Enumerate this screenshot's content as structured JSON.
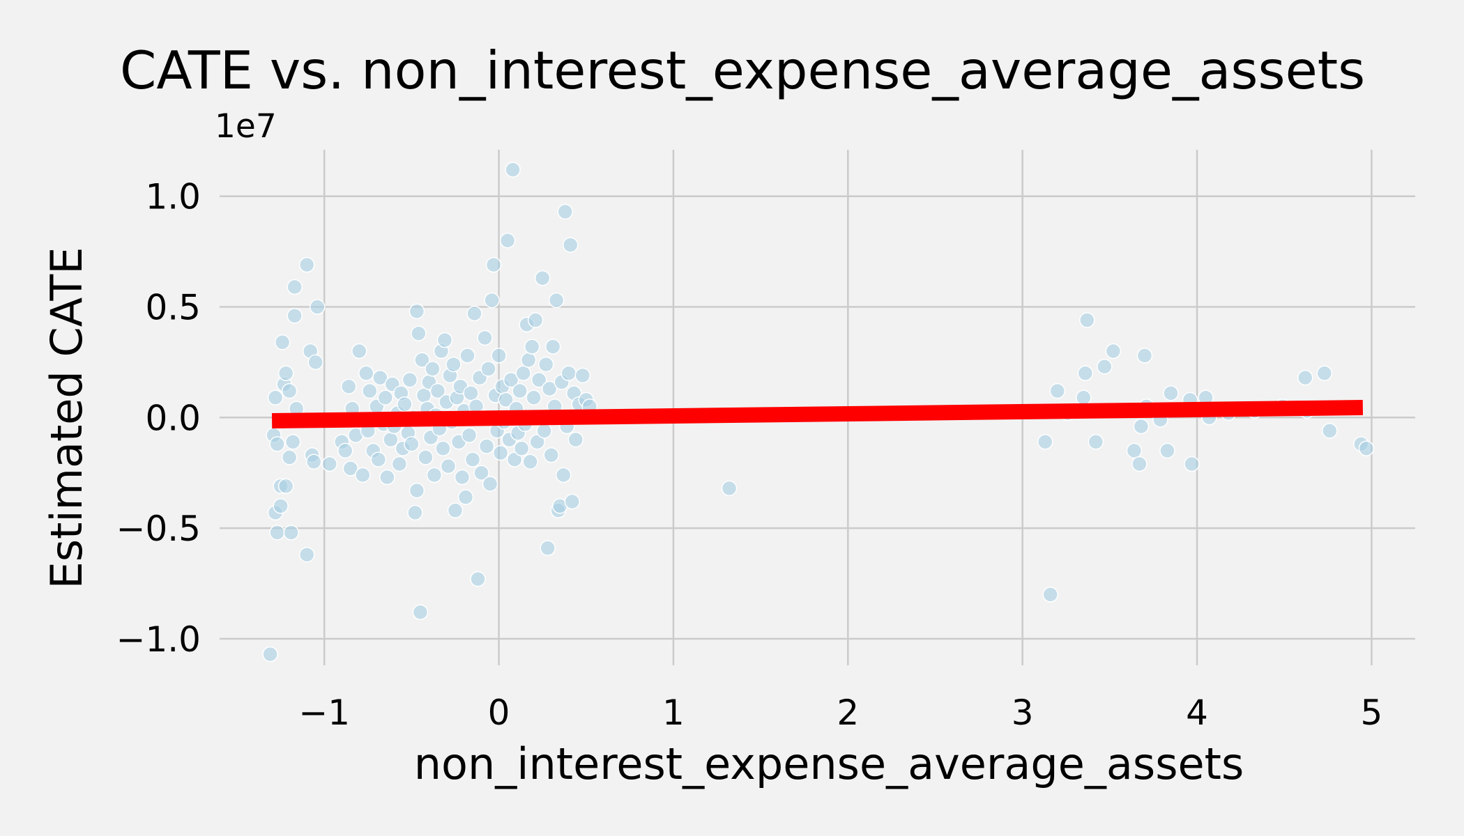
{
  "chart_data": {
    "type": "scatter",
    "title": "CATE vs. non_interest_expense_average_assets",
    "xlabel": "non_interest_expense_average_assets",
    "ylabel": "Estimated CATE",
    "y_offset_label": "1e7",
    "xlim": [
      -1.6,
      5.25
    ],
    "ylim": [
      -1.12,
      1.21
    ],
    "xticks": [
      -1,
      0,
      1,
      2,
      3,
      4,
      5
    ],
    "yticks": [
      -1.0,
      -0.5,
      0.0,
      0.5,
      1.0
    ],
    "xtick_labels": [
      "−1",
      "0",
      "1",
      "2",
      "3",
      "4",
      "5"
    ],
    "ytick_labels": [
      "−1.0",
      "−0.5",
      "0.0",
      "0.5",
      "1.0"
    ],
    "grid": true,
    "colors": {
      "points": "#a6cee3",
      "fit_line": "#ff0000",
      "background": "#f2f2f2"
    },
    "fit_line": {
      "x": [
        -1.3,
        4.95
      ],
      "y": [
        -0.015,
        0.045
      ]
    },
    "points": [
      [
        -1.31,
        -1.07
      ],
      [
        -1.28,
        -0.43
      ],
      [
        -1.27,
        -0.52
      ],
      [
        -1.29,
        -0.08
      ],
      [
        -1.27,
        -0.12
      ],
      [
        -1.28,
        0.09
      ],
      [
        -1.25,
        -0.31
      ],
      [
        -1.25,
        -0.4
      ],
      [
        -1.24,
        0.34
      ],
      [
        -1.23,
        0.15
      ],
      [
        -1.22,
        0.2
      ],
      [
        -1.22,
        -0.31
      ],
      [
        -1.2,
        0.12
      ],
      [
        -1.2,
        -0.18
      ],
      [
        -1.19,
        -0.52
      ],
      [
        -1.18,
        -0.11
      ],
      [
        -1.17,
        0.46
      ],
      [
        -1.17,
        0.59
      ],
      [
        -1.16,
        0.04
      ],
      [
        -1.1,
        0.69
      ],
      [
        -1.1,
        -0.62
      ],
      [
        -1.08,
        0.3
      ],
      [
        -1.07,
        -0.17
      ],
      [
        -1.06,
        -0.2
      ],
      [
        -1.05,
        0.25
      ],
      [
        -1.04,
        0.5
      ],
      [
        -0.97,
        -0.21
      ],
      [
        -0.9,
        -0.11
      ],
      [
        -0.88,
        -0.15
      ],
      [
        -0.86,
        0.14
      ],
      [
        -0.85,
        -0.23
      ],
      [
        -0.84,
        0.04
      ],
      [
        -0.82,
        -0.08
      ],
      [
        -0.8,
        0.3
      ],
      [
        -0.78,
        -0.26
      ],
      [
        -0.76,
        0.2
      ],
      [
        -0.75,
        -0.06
      ],
      [
        -0.74,
        0.12
      ],
      [
        -0.72,
        -0.15
      ],
      [
        -0.7,
        0.05
      ],
      [
        -0.69,
        -0.19
      ],
      [
        -0.68,
        0.18
      ],
      [
        -0.66,
        -0.03
      ],
      [
        -0.65,
        0.09
      ],
      [
        -0.64,
        -0.27
      ],
      [
        -0.62,
        -0.1
      ],
      [
        -0.61,
        0.15
      ],
      [
        -0.6,
        -0.04
      ],
      [
        -0.58,
        0.02
      ],
      [
        -0.57,
        -0.21
      ],
      [
        -0.56,
        0.11
      ],
      [
        -0.55,
        -0.14
      ],
      [
        -0.54,
        0.06
      ],
      [
        -0.52,
        -0.07
      ],
      [
        -0.51,
        0.17
      ],
      [
        -0.5,
        -0.12
      ],
      [
        -0.49,
        0.0
      ],
      [
        -0.48,
        -0.43
      ],
      [
        -0.47,
        -0.33
      ],
      [
        -0.47,
        0.48
      ],
      [
        -0.46,
        0.38
      ],
      [
        -0.45,
        -0.88
      ],
      [
        -0.44,
        0.26
      ],
      [
        -0.43,
        0.1
      ],
      [
        -0.42,
        -0.18
      ],
      [
        -0.41,
        0.04
      ],
      [
        -0.4,
        0.16
      ],
      [
        -0.39,
        -0.09
      ],
      [
        -0.38,
        0.22
      ],
      [
        -0.37,
        -0.26
      ],
      [
        -0.36,
        0.01
      ],
      [
        -0.35,
        0.12
      ],
      [
        -0.34,
        -0.05
      ],
      [
        -0.33,
        0.3
      ],
      [
        -0.32,
        -0.14
      ],
      [
        -0.31,
        0.35
      ],
      [
        -0.3,
        0.07
      ],
      [
        -0.29,
        -0.22
      ],
      [
        -0.28,
        0.19
      ],
      [
        -0.27,
        -0.02
      ],
      [
        -0.26,
        0.24
      ],
      [
        -0.25,
        -0.42
      ],
      [
        -0.24,
        0.09
      ],
      [
        -0.23,
        -0.11
      ],
      [
        -0.22,
        0.14
      ],
      [
        -0.21,
        -0.27
      ],
      [
        -0.2,
        0.03
      ],
      [
        -0.19,
        -0.36
      ],
      [
        -0.18,
        0.28
      ],
      [
        -0.17,
        -0.08
      ],
      [
        -0.16,
        0.11
      ],
      [
        -0.15,
        -0.19
      ],
      [
        -0.14,
        0.47
      ],
      [
        -0.13,
        0.05
      ],
      [
        -0.12,
        -0.73
      ],
      [
        -0.11,
        0.18
      ],
      [
        -0.1,
        -0.25
      ],
      [
        -0.09,
        0.0
      ],
      [
        -0.08,
        0.36
      ],
      [
        -0.07,
        -0.13
      ],
      [
        -0.06,
        0.22
      ],
      [
        -0.05,
        -0.3
      ],
      [
        -0.04,
        0.53
      ],
      [
        -0.03,
        0.69
      ],
      [
        -0.02,
        0.1
      ],
      [
        -0.01,
        -0.06
      ],
      [
        0.0,
        0.28
      ],
      [
        0.01,
        -0.16
      ],
      [
        0.02,
        0.14
      ],
      [
        0.03,
        -0.02
      ],
      [
        0.04,
        0.08
      ],
      [
        0.05,
        0.8
      ],
      [
        0.06,
        -0.1
      ],
      [
        0.07,
        0.17
      ],
      [
        0.08,
        1.12
      ],
      [
        0.09,
        -0.19
      ],
      [
        0.1,
        0.04
      ],
      [
        0.11,
        -0.07
      ],
      [
        0.12,
        0.12
      ],
      [
        0.13,
        -0.14
      ],
      [
        0.14,
        0.2
      ],
      [
        0.15,
        -0.03
      ],
      [
        0.16,
        0.42
      ],
      [
        0.17,
        0.26
      ],
      [
        0.18,
        -0.2
      ],
      [
        0.19,
        0.32
      ],
      [
        0.2,
        0.09
      ],
      [
        0.21,
        0.44
      ],
      [
        0.22,
        -0.11
      ],
      [
        0.23,
        0.17
      ],
      [
        0.24,
        0.0
      ],
      [
        0.25,
        0.63
      ],
      [
        0.26,
        -0.06
      ],
      [
        0.27,
        0.24
      ],
      [
        0.28,
        -0.59
      ],
      [
        0.29,
        0.13
      ],
      [
        0.3,
        -0.17
      ],
      [
        0.31,
        0.32
      ],
      [
        0.32,
        0.05
      ],
      [
        0.33,
        0.53
      ],
      [
        0.34,
        -0.42
      ],
      [
        0.35,
        -0.4
      ],
      [
        0.36,
        0.16
      ],
      [
        0.37,
        -0.26
      ],
      [
        0.38,
        0.93
      ],
      [
        0.39,
        -0.04
      ],
      [
        0.4,
        0.2
      ],
      [
        0.41,
        0.78
      ],
      [
        0.42,
        -0.38
      ],
      [
        0.43,
        0.11
      ],
      [
        0.44,
        -0.1
      ],
      [
        0.46,
        0.06
      ],
      [
        0.48,
        0.19
      ],
      [
        0.5,
        0.08
      ],
      [
        0.52,
        0.05
      ],
      [
        1.32,
        -0.32
      ],
      [
        3.13,
        -0.11
      ],
      [
        3.16,
        -0.8
      ],
      [
        3.2,
        0.12
      ],
      [
        3.26,
        0.02
      ],
      [
        3.35,
        0.09
      ],
      [
        3.36,
        0.2
      ],
      [
        3.37,
        0.44
      ],
      [
        3.42,
        -0.11
      ],
      [
        3.47,
        0.23
      ],
      [
        3.52,
        0.3
      ],
      [
        3.64,
        -0.15
      ],
      [
        3.67,
        -0.21
      ],
      [
        3.68,
        -0.04
      ],
      [
        3.7,
        0.28
      ],
      [
        3.71,
        0.05
      ],
      [
        3.79,
        -0.01
      ],
      [
        3.83,
        -0.15
      ],
      [
        3.85,
        0.11
      ],
      [
        3.96,
        0.08
      ],
      [
        3.97,
        -0.21
      ],
      [
        4.05,
        0.09
      ],
      [
        4.07,
        0.0
      ],
      [
        4.18,
        0.02
      ],
      [
        4.33,
        0.03
      ],
      [
        4.49,
        0.05
      ],
      [
        4.62,
        0.18
      ],
      [
        4.63,
        0.03
      ],
      [
        4.73,
        0.2
      ],
      [
        4.76,
        -0.06
      ],
      [
        4.94,
        -0.12
      ],
      [
        4.97,
        -0.14
      ]
    ]
  }
}
